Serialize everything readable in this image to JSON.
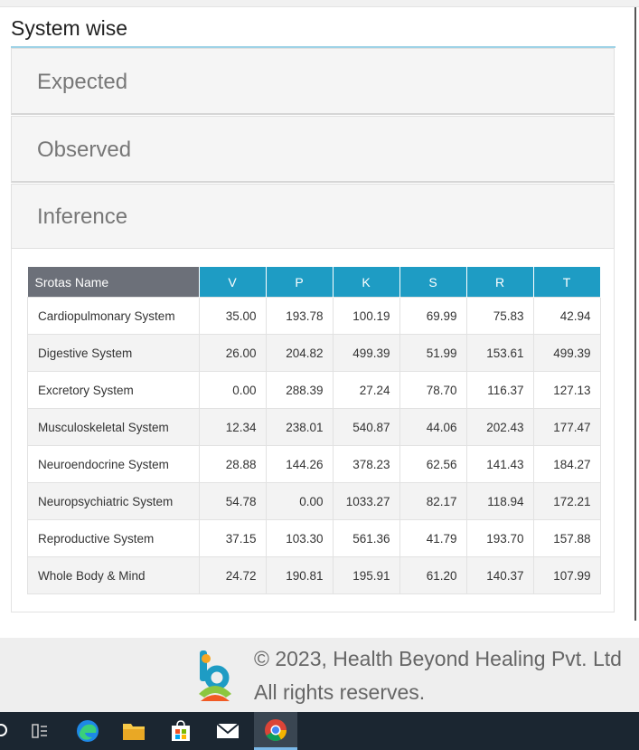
{
  "section": {
    "title": "System wise"
  },
  "accordion": [
    {
      "label": "Expected"
    },
    {
      "label": "Observed"
    },
    {
      "label": "Inference"
    }
  ],
  "table": {
    "headers": [
      "Srotas Name",
      "V",
      "P",
      "K",
      "S",
      "R",
      "T"
    ],
    "rows": [
      [
        "Cardiopulmonary System",
        "35.00",
        "193.78",
        "100.19",
        "69.99",
        "75.83",
        "42.94"
      ],
      [
        "Digestive System",
        "26.00",
        "204.82",
        "499.39",
        "51.99",
        "153.61",
        "499.39"
      ],
      [
        "Excretory System",
        "0.00",
        "288.39",
        "27.24",
        "78.70",
        "116.37",
        "127.13"
      ],
      [
        "Musculoskeletal System",
        "12.34",
        "238.01",
        "540.87",
        "44.06",
        "202.43",
        "177.47"
      ],
      [
        "Neuroendocrine System",
        "28.88",
        "144.26",
        "378.23",
        "62.56",
        "141.43",
        "184.27"
      ],
      [
        "Neuropsychiatric System",
        "54.78",
        "0.00",
        "1033.27",
        "82.17",
        "118.94",
        "172.21"
      ],
      [
        "Reproductive System",
        "37.15",
        "103.30",
        "561.36",
        "41.79",
        "193.70",
        "157.88"
      ],
      [
        "Whole Body & Mind",
        "24.72",
        "190.81",
        "195.91",
        "61.20",
        "140.37",
        "107.99"
      ]
    ]
  },
  "footer": {
    "copyright": "© 2023, Health Beyond Healing Pvt. Ltd",
    "rights": "All rights reserves."
  },
  "colors": {
    "table_header_accent": "#1e9cc4",
    "table_header_name": "#6c7079",
    "taskbar": "#1b2631"
  },
  "taskbar": {
    "icons": [
      "task-view-icon",
      "edge-icon",
      "file-explorer-icon",
      "store-icon",
      "mail-icon",
      "chrome-icon"
    ]
  }
}
